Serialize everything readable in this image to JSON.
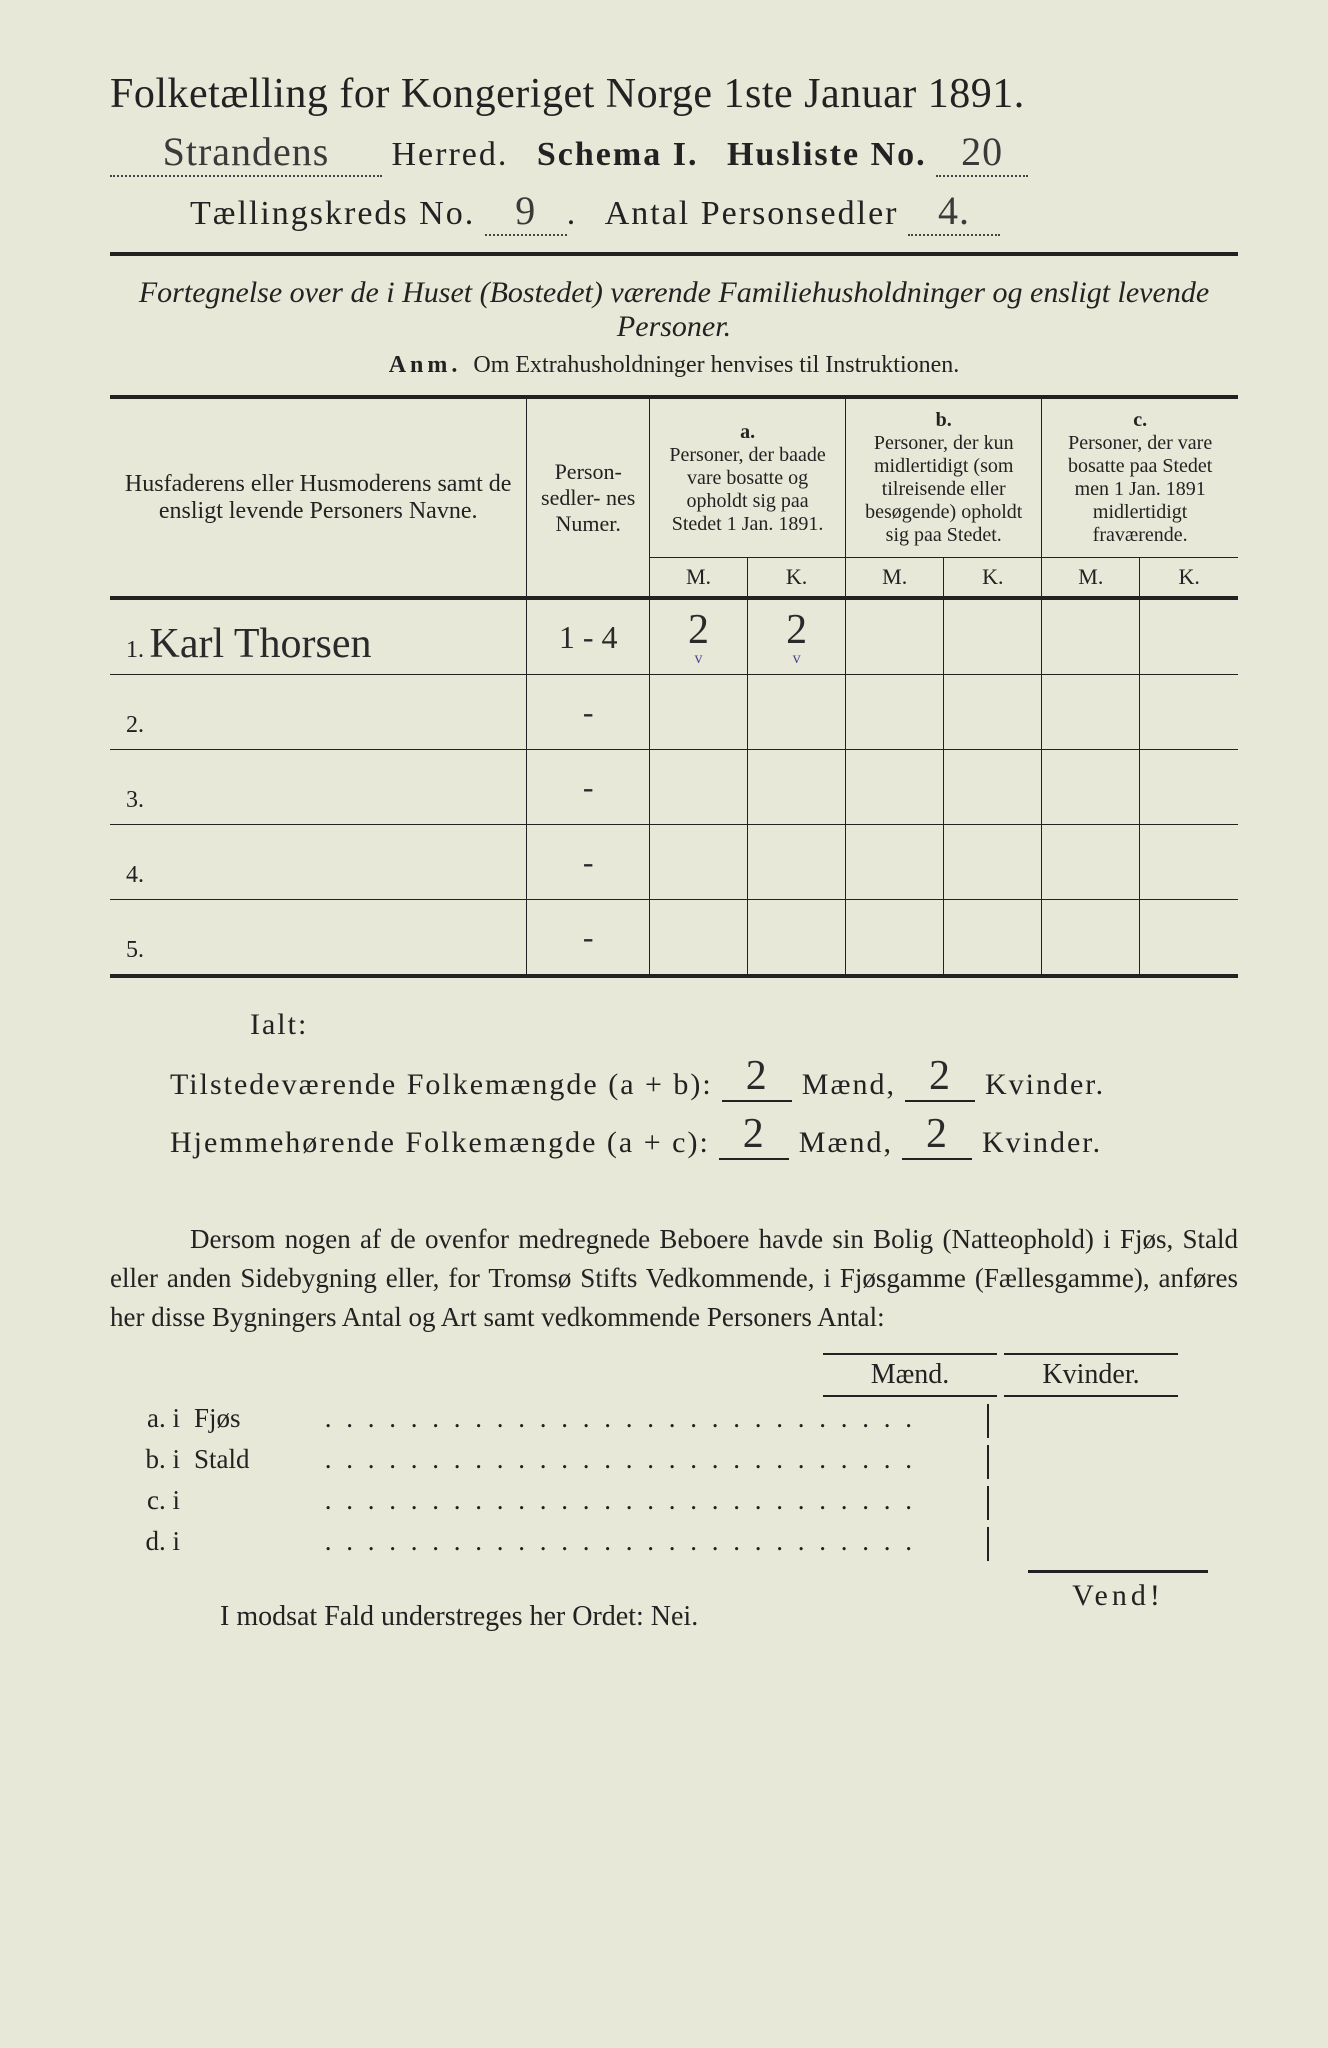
{
  "title": "Folketælling for Kongeriget Norge 1ste Januar 1891.",
  "header": {
    "herred_value": "Strandens",
    "herred_label": "Herred.",
    "schema_label": "Schema I.",
    "husliste_label": "Husliste No.",
    "husliste_value": "20",
    "kreds_label": "Tællingskreds No.",
    "kreds_value": "9",
    "antal_label": "Antal Personsedler",
    "antal_value": "4."
  },
  "subtitle": "Fortegnelse over de i Huset (Bostedet) værende Familiehusholdninger og ensligt levende Personer.",
  "anm_label": "Anm.",
  "anm_text": "Om Extrahusholdninger henvises til Instruktionen.",
  "table": {
    "col_name": "Husfaderens eller Husmoderens samt de ensligt levende Personers Navne.",
    "col_numer": "Person-\nsedler-\nnes\nNumer.",
    "col_a_label": "a.",
    "col_a_text": "Personer, der baade vare bosatte og opholdt sig paa Stedet 1 Jan. 1891.",
    "col_b_label": "b.",
    "col_b_text": "Personer, der kun midlertidigt (som tilreisende eller besøgende) opholdt sig paa Stedet.",
    "col_c_label": "c.",
    "col_c_text": "Personer, der vare bosatte paa Stedet men 1 Jan. 1891 midlertidigt fraværende.",
    "m": "M.",
    "k": "K.",
    "rows": [
      {
        "num": "1.",
        "name": "Karl Thorsen",
        "numer": "1 - 4",
        "a_m": "2",
        "a_k": "2",
        "b_m": "",
        "b_k": "",
        "c_m": "",
        "c_k": ""
      },
      {
        "num": "2.",
        "name": "",
        "numer": "-",
        "a_m": "",
        "a_k": "",
        "b_m": "",
        "b_k": "",
        "c_m": "",
        "c_k": ""
      },
      {
        "num": "3.",
        "name": "",
        "numer": "-",
        "a_m": "",
        "a_k": "",
        "b_m": "",
        "b_k": "",
        "c_m": "",
        "c_k": ""
      },
      {
        "num": "4.",
        "name": "",
        "numer": "-",
        "a_m": "",
        "a_k": "",
        "b_m": "",
        "b_k": "",
        "c_m": "",
        "c_k": ""
      },
      {
        "num": "5.",
        "name": "",
        "numer": "-",
        "a_m": "",
        "a_k": "",
        "b_m": "",
        "b_k": "",
        "c_m": "",
        "c_k": ""
      }
    ]
  },
  "ialt": "Ialt:",
  "sum1": {
    "label": "Tilstedeværende Folkemængde (a + b):",
    "m": "2",
    "k": "2",
    "maend": "Mænd,",
    "kvinder": "Kvinder."
  },
  "sum2": {
    "label": "Hjemmehørende Folkemængde (a + c):",
    "m": "2",
    "k": "2",
    "maend": "Mænd,",
    "kvinder": "Kvinder."
  },
  "para": "Dersom nogen af de ovenfor medregnede Beboere havde sin Bolig (Natteophold) i Fjøs, Stald eller anden Sidebygning eller, for Tromsø Stifts Vedkommende, i Fjøsgamme (Fællesgamme), anføres her disse Bygningers Antal og Art samt vedkommende Personers Antal:",
  "bld_header_m": "Mænd.",
  "bld_header_k": "Kvinder.",
  "bld_rows": [
    {
      "lbl": "a. i",
      "name": "Fjøs"
    },
    {
      "lbl": "b. i",
      "name": "Stald"
    },
    {
      "lbl": "c. i",
      "name": ""
    },
    {
      "lbl": "d. i",
      "name": ""
    }
  ],
  "modsat": "I modsat Fald understreges her Ordet: Nei.",
  "vend": "Vend!",
  "colors": {
    "bg": "#e8e8d8",
    "ink": "#222222",
    "handwriting": "#2a2a2a"
  }
}
